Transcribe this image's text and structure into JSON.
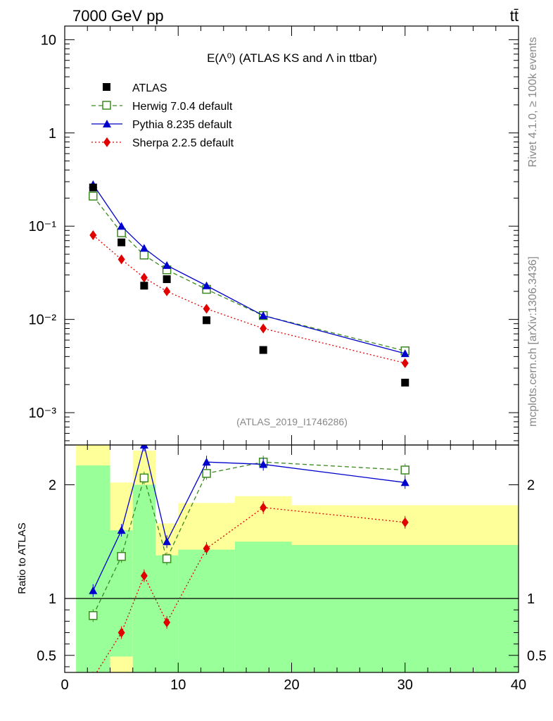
{
  "header": {
    "energy": "7000 GeV pp",
    "process": "tt̄"
  },
  "side": {
    "rivet": "Rivet 4.1.0, ≥ 100k events",
    "mcplots": "mcplots.cern.ch [arXiv:1306.3436]"
  },
  "chart_data": {
    "type": "line",
    "title": "E(Λ⁰) (ATLAS KS and Λ in ttbar)",
    "analysis": "(ATLAS_2019_I1746286)",
    "main": {
      "yscale": "log",
      "ylim": [
        0.00045,
        14
      ],
      "yticks": [
        {
          "value": 10,
          "label": "10"
        },
        {
          "value": 1,
          "label": "1"
        },
        {
          "value": 0.1,
          "label": "10⁻¹"
        },
        {
          "value": 0.01,
          "label": "10⁻²"
        },
        {
          "value": 0.001,
          "label": "10⁻³"
        }
      ]
    },
    "ratio": {
      "ylabel": "Ratio to ATLAS",
      "ylim": [
        0.35,
        2.35
      ],
      "yticks": [
        {
          "value": 2,
          "label": "2"
        },
        {
          "value": 1,
          "label": "1"
        },
        {
          "value": 0.5,
          "label": "0.5"
        }
      ]
    },
    "x": {
      "xlim": [
        0,
        40
      ],
      "xticks": [
        {
          "value": 0,
          "label": "0"
        },
        {
          "value": 10,
          "label": "10"
        },
        {
          "value": 20,
          "label": "20"
        },
        {
          "value": 30,
          "label": "30"
        },
        {
          "value": 40,
          "label": "40"
        }
      ]
    },
    "x_centers": [
      2.5,
      5,
      7,
      9,
      12.5,
      17.5,
      30
    ],
    "bins": [
      [
        1,
        4
      ],
      [
        4,
        6
      ],
      [
        6,
        8
      ],
      [
        8,
        10
      ],
      [
        10,
        15
      ],
      [
        15,
        20
      ],
      [
        20,
        40
      ]
    ],
    "data": {
      "name": "ATLAS",
      "values": [
        0.26,
        0.067,
        0.023,
        0.027,
        0.0098,
        0.0047,
        0.0021
      ],
      "band_green": [
        [
          0.3,
          2.17
        ],
        [
          0.49,
          1.6
        ],
        [
          0.3,
          2.0
        ],
        [
          0.3,
          1.38
        ],
        [
          0.3,
          1.43
        ],
        [
          0.3,
          1.5
        ],
        [
          0.3,
          1.47
        ]
      ],
      "band_yellow": [
        [
          0.3,
          2.37
        ],
        [
          0.3,
          2.02
        ],
        [
          0.3,
          2.3
        ],
        [
          0.4,
          1.66
        ],
        [
          0.3,
          1.84
        ],
        [
          0.3,
          1.9
        ],
        [
          0.3,
          1.82
        ]
      ]
    },
    "series": [
      {
        "name": "Herwig 7.0.4 default",
        "color": "#3a8a1f",
        "dash": "6,4",
        "marker": "open-square",
        "values": [
          0.21,
          0.085,
          0.049,
          0.034,
          0.021,
          0.011,
          0.0046
        ],
        "ratio": [
          0.85,
          1.37,
          2.06,
          1.35,
          2.1,
          2.2,
          2.13
        ]
      },
      {
        "name": "Pythia 8.235 default",
        "color": "#0000cc",
        "dash": "",
        "marker": "triangle",
        "values": [
          0.28,
          0.1,
          0.058,
          0.038,
          0.023,
          0.011,
          0.0043
        ],
        "ratio": [
          1.07,
          1.6,
          2.35,
          1.5,
          2.2,
          2.18,
          2.02
        ]
      },
      {
        "name": "Sherpa 2.2.5 default",
        "color": "#e00000",
        "dash": "2,3",
        "marker": "diamond",
        "values": [
          0.08,
          0.044,
          0.028,
          0.02,
          0.013,
          0.008,
          0.0034
        ],
        "ratio": [
          0.3,
          0.7,
          1.2,
          0.79,
          1.44,
          1.8,
          1.67
        ]
      }
    ]
  },
  "legend": {
    "data_label": "ATLAS",
    "herwig_label": "Herwig 7.0.4 default",
    "pythia_label": "Pythia 8.235 default",
    "sherpa_label": "Sherpa 2.2.5 default"
  }
}
